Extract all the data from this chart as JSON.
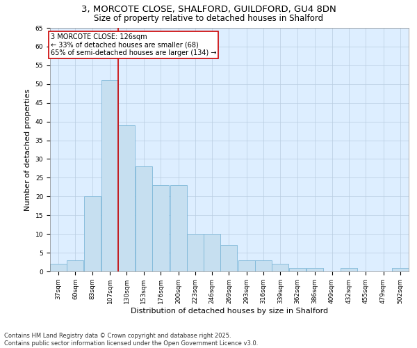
{
  "title1": "3, MORCOTE CLOSE, SHALFORD, GUILDFORD, GU4 8DN",
  "title2": "Size of property relative to detached houses in Shalford",
  "xlabel": "Distribution of detached houses by size in Shalford",
  "ylabel": "Number of detached properties",
  "footer1": "Contains HM Land Registry data © Crown copyright and database right 2025.",
  "footer2": "Contains public sector information licensed under the Open Government Licence v3.0.",
  "bin_labels": [
    "37sqm",
    "60sqm",
    "83sqm",
    "107sqm",
    "130sqm",
    "153sqm",
    "176sqm",
    "200sqm",
    "223sqm",
    "246sqm",
    "269sqm",
    "293sqm",
    "316sqm",
    "339sqm",
    "362sqm",
    "386sqm",
    "409sqm",
    "432sqm",
    "455sqm",
    "479sqm",
    "502sqm"
  ],
  "bin_edges": [
    37,
    60,
    83,
    107,
    130,
    153,
    176,
    200,
    223,
    246,
    269,
    293,
    316,
    339,
    362,
    386,
    409,
    432,
    455,
    479,
    502
  ],
  "bar_values": [
    2,
    3,
    20,
    51,
    39,
    28,
    23,
    23,
    10,
    10,
    7,
    3,
    3,
    2,
    1,
    1,
    0,
    1,
    0,
    0,
    1
  ],
  "bar_color": "#c6dff0",
  "bar_edge_color": "#7fb8d8",
  "vline_x": 130,
  "vline_color": "#cc0000",
  "annotation_text": "3 MORCOTE CLOSE: 126sqm\n← 33% of detached houses are smaller (68)\n65% of semi-detached houses are larger (134) →",
  "annotation_box_color": "#ffffff",
  "annotation_box_edge": "#cc0000",
  "ylim": [
    0,
    65
  ],
  "yticks": [
    0,
    5,
    10,
    15,
    20,
    25,
    30,
    35,
    40,
    45,
    50,
    55,
    60,
    65
  ],
  "background_color": "#ddeeff",
  "grid_color": "#b8cce0",
  "title_fontsize": 9.5,
  "subtitle_fontsize": 8.5,
  "axis_label_fontsize": 8,
  "tick_fontsize": 6.5,
  "footer_fontsize": 6,
  "annotation_fontsize": 7
}
